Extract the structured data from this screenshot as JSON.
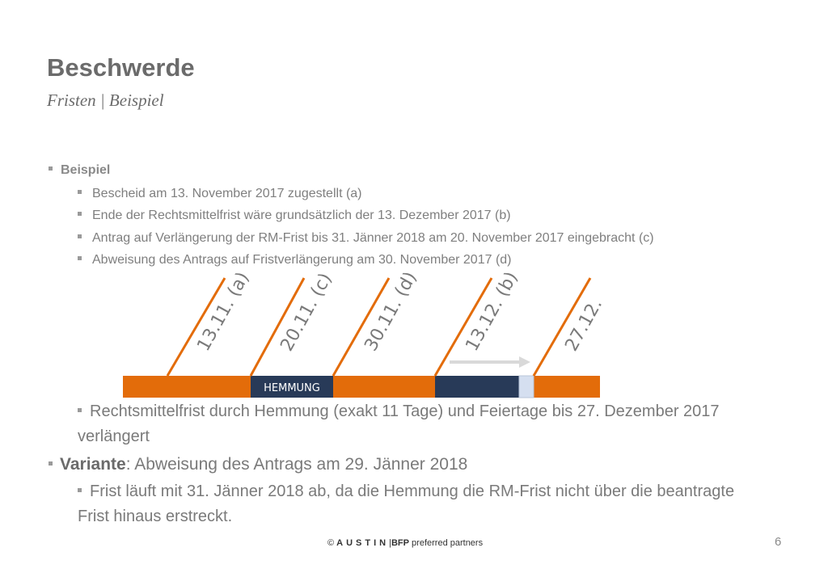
{
  "header": {
    "title": "Beschwerde",
    "subtitle": "Fristen | Beispiel"
  },
  "bullets": {
    "main": "Beispiel",
    "items": [
      "Bescheid am 13. November 2017 zugestellt (a)",
      "Ende der Rechtsmittelfrist wäre grundsätzlich der 13. Dezember 2017 (b)",
      "Antrag auf Verlängerung der RM-Frist bis 31. Jänner 2018 am 20. November 2017 eingebracht (c)",
      "Abweisung des Antrags auf Fristverlängerung am 30. November 2017 (d)"
    ]
  },
  "timeline": {
    "date_labels": [
      "13.11. (a)",
      "20.11. (c)",
      "30.11. (d)",
      "13.12. (b)",
      "27.12."
    ],
    "hemmung_label": "HEMMUNG",
    "colors": {
      "orange": "#e36c0a",
      "navy": "#283a58",
      "light_blue": "#d5dff0",
      "arrow": "#d9d9d9"
    }
  },
  "after": {
    "extension_line1": "Rechtsmittelfrist durch Hemmung (exakt 11 Tage) und Feiertage bis 27. Dezember 2017",
    "extension_line2": "verlängert",
    "variante_label": "Variante",
    "variante_text": ": Abweisung des Antrags am 29. Jänner 2018",
    "frist_line1": "Frist läuft mit 31. Jänner 2018 ab, da die Hemmung die RM-Frist nicht über die beantragte",
    "frist_line2": "Frist hinaus erstreckt."
  },
  "footer": {
    "copyright": "©",
    "austin": "AUSTIN",
    "bfp": "BFP",
    "partners": "preferred partners",
    "page_number": "6"
  }
}
